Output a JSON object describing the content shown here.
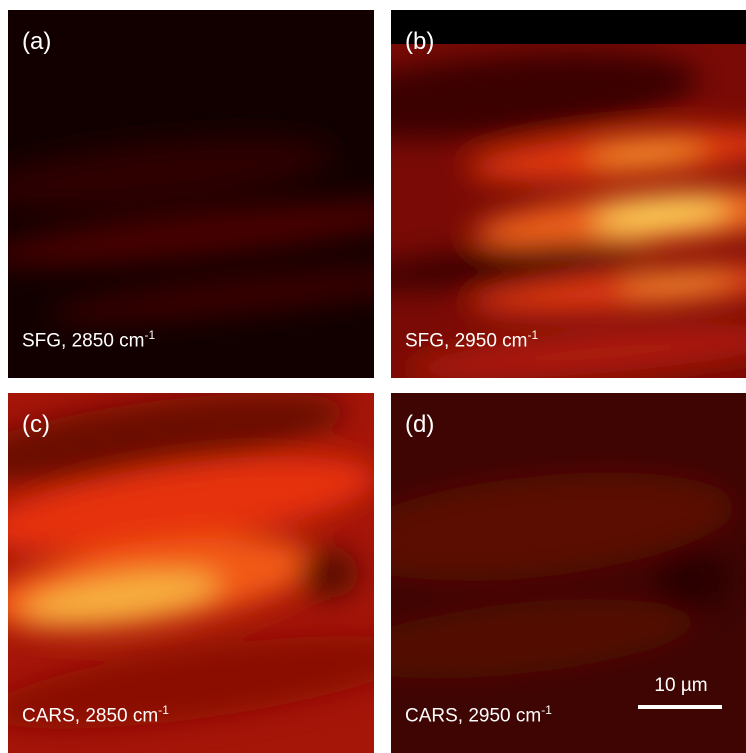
{
  "panels": [
    {
      "label": "(a)",
      "caption": "SFG, 2850 cm",
      "superscript": "-1"
    },
    {
      "label": "(b)",
      "caption": "SFG, 2950 cm",
      "superscript": "-1"
    },
    {
      "label": "(c)",
      "caption": "CARS, 2850 cm",
      "superscript": "-1"
    },
    {
      "label": "(d)",
      "caption": "CARS, 2950 cm",
      "superscript": "-1"
    }
  ],
  "scale_bar": "10 µm"
}
